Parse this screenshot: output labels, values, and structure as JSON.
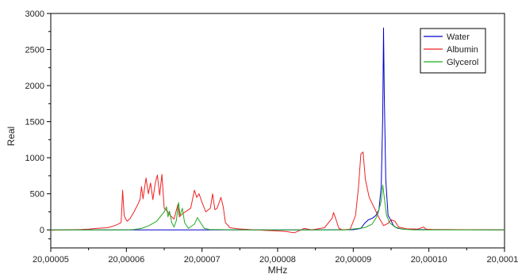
{
  "chart_data": {
    "type": "line",
    "xlabel": "MHz",
    "ylabel": "Real",
    "xlim": [
      20.00005,
      20.00011
    ],
    "ylim": [
      -250,
      3000
    ],
    "xticks": [
      20.00005,
      20.00006,
      20.00007,
      20.00008,
      20.00009,
      20.0001,
      20.00011
    ],
    "xtick_labels": [
      "20,00005",
      "20,00006",
      "20,00007",
      "20,00008",
      "20,00009",
      "20,00010",
      "20,00011"
    ],
    "yticks": [
      0,
      500,
      1000,
      1500,
      2000,
      2500,
      3000
    ],
    "ytick_labels": [
      "0",
      "500",
      "1000",
      "1500",
      "2000",
      "2500",
      "3000"
    ],
    "grid": false,
    "legend_position": "top-right",
    "series": [
      {
        "name": "Water",
        "color": "#0000cc",
        "points": [
          [
            20.00005,
            0
          ],
          [
            20.000085,
            0
          ],
          [
            20.00009,
            2
          ],
          [
            20.000091,
            20
          ],
          [
            20.0000915,
            90
          ],
          [
            20.000092,
            140
          ],
          [
            20.0000925,
            160
          ],
          [
            20.000093,
            200
          ],
          [
            20.0000934,
            280
          ],
          [
            20.0000937,
            600
          ],
          [
            20.0000939,
            1600
          ],
          [
            20.000094,
            2800
          ],
          [
            20.0000941,
            1900
          ],
          [
            20.0000943,
            700
          ],
          [
            20.0000946,
            200
          ],
          [
            20.000095,
            130
          ],
          [
            20.0000953,
            60
          ],
          [
            20.0000958,
            25
          ],
          [
            20.0000965,
            10
          ],
          [
            20.000098,
            5
          ],
          [
            20.00011,
            0
          ]
        ]
      },
      {
        "name": "Albumin",
        "color": "#ee2222",
        "points": [
          [
            20.00005,
            -5
          ],
          [
            20.000052,
            0
          ],
          [
            20.000054,
            5
          ],
          [
            20.000055,
            10
          ],
          [
            20.000056,
            20
          ],
          [
            20.0000575,
            30
          ],
          [
            20.0000585,
            60
          ],
          [
            20.0000593,
            100
          ],
          [
            20.0000595,
            550
          ],
          [
            20.0000597,
            200
          ],
          [
            20.0000599,
            150
          ],
          [
            20.0000601,
            120
          ],
          [
            20.0000605,
            160
          ],
          [
            20.000061,
            250
          ],
          [
            20.0000615,
            350
          ],
          [
            20.0000618,
            420
          ],
          [
            20.000062,
            600
          ],
          [
            20.0000622,
            430
          ],
          [
            20.0000626,
            720
          ],
          [
            20.0000629,
            500
          ],
          [
            20.0000632,
            650
          ],
          [
            20.0000635,
            420
          ],
          [
            20.0000638,
            640
          ],
          [
            20.0000641,
            760
          ],
          [
            20.0000644,
            480
          ],
          [
            20.0000647,
            770
          ],
          [
            20.000065,
            300
          ],
          [
            20.0000654,
            260
          ],
          [
            20.0000658,
            200
          ],
          [
            20.0000663,
            150
          ],
          [
            20.0000668,
            350
          ],
          [
            20.000067,
            180
          ],
          [
            20.0000675,
            230
          ],
          [
            20.0000685,
            300
          ],
          [
            20.000069,
            550
          ],
          [
            20.0000693,
            450
          ],
          [
            20.0000696,
            500
          ],
          [
            20.00007,
            380
          ],
          [
            20.0000705,
            250
          ],
          [
            20.0000711,
            300
          ],
          [
            20.0000714,
            500
          ],
          [
            20.0000717,
            280
          ],
          [
            20.000072,
            300
          ],
          [
            20.0000725,
            450
          ],
          [
            20.0000728,
            320
          ],
          [
            20.0000731,
            100
          ],
          [
            20.0000737,
            30
          ],
          [
            20.0000747,
            15
          ],
          [
            20.000077,
            0
          ],
          [
            20.000081,
            -20
          ],
          [
            20.0000822,
            -40
          ],
          [
            20.0000835,
            20
          ],
          [
            20.0000845,
            0
          ],
          [
            20.0000862,
            30
          ],
          [
            20.0000872,
            160
          ],
          [
            20.0000874,
            240
          ],
          [
            20.0000877,
            150
          ],
          [
            20.0000881,
            20
          ],
          [
            20.0000886,
            0
          ],
          [
            20.0000896,
            10
          ],
          [
            20.0000903,
            200
          ],
          [
            20.0000907,
            600
          ],
          [
            20.000091,
            1050
          ],
          [
            20.0000913,
            1080
          ],
          [
            20.0000916,
            700
          ],
          [
            20.0000921,
            450
          ],
          [
            20.0000928,
            300
          ],
          [
            20.0000935,
            150
          ],
          [
            20.000094,
            60
          ],
          [
            20.0000946,
            90
          ],
          [
            20.000095,
            140
          ],
          [
            20.0000955,
            120
          ],
          [
            20.000096,
            40
          ],
          [
            20.000097,
            15
          ],
          [
            20.0000985,
            10
          ],
          [
            20.0000993,
            40
          ],
          [
            20.0000996,
            10
          ],
          [
            20.0001005,
            5
          ],
          [
            20.00011,
            0
          ]
        ]
      },
      {
        "name": "Glycerol",
        "color": "#22aa22",
        "points": [
          [
            20.00005,
            0
          ],
          [
            20.00006,
            0
          ],
          [
            20.000061,
            5
          ],
          [
            20.000062,
            20
          ],
          [
            20.000063,
            60
          ],
          [
            20.000064,
            120
          ],
          [
            20.000065,
            250
          ],
          [
            20.0000653,
            320
          ],
          [
            20.0000655,
            180
          ],
          [
            20.0000657,
            260
          ],
          [
            20.000066,
            100
          ],
          [
            20.0000663,
            40
          ],
          [
            20.0000666,
            130
          ],
          [
            20.0000669,
            380
          ],
          [
            20.0000671,
            200
          ],
          [
            20.0000674,
            300
          ],
          [
            20.0000677,
            100
          ],
          [
            20.0000682,
            20
          ],
          [
            20.000069,
            80
          ],
          [
            20.0000694,
            170
          ],
          [
            20.0000698,
            100
          ],
          [
            20.0000703,
            20
          ],
          [
            20.000071,
            5
          ],
          [
            20.000075,
            0
          ],
          [
            20.000089,
            0
          ],
          [
            20.0000915,
            30
          ],
          [
            20.0000925,
            80
          ],
          [
            20.0000932,
            200
          ],
          [
            20.0000937,
            400
          ],
          [
            20.0000939,
            620
          ],
          [
            20.0000941,
            450
          ],
          [
            20.0000944,
            200
          ],
          [
            20.0000948,
            100
          ],
          [
            20.0000955,
            40
          ],
          [
            20.0000965,
            10
          ],
          [
            20.000098,
            0
          ],
          [
            20.00011,
            0
          ]
        ]
      }
    ]
  }
}
